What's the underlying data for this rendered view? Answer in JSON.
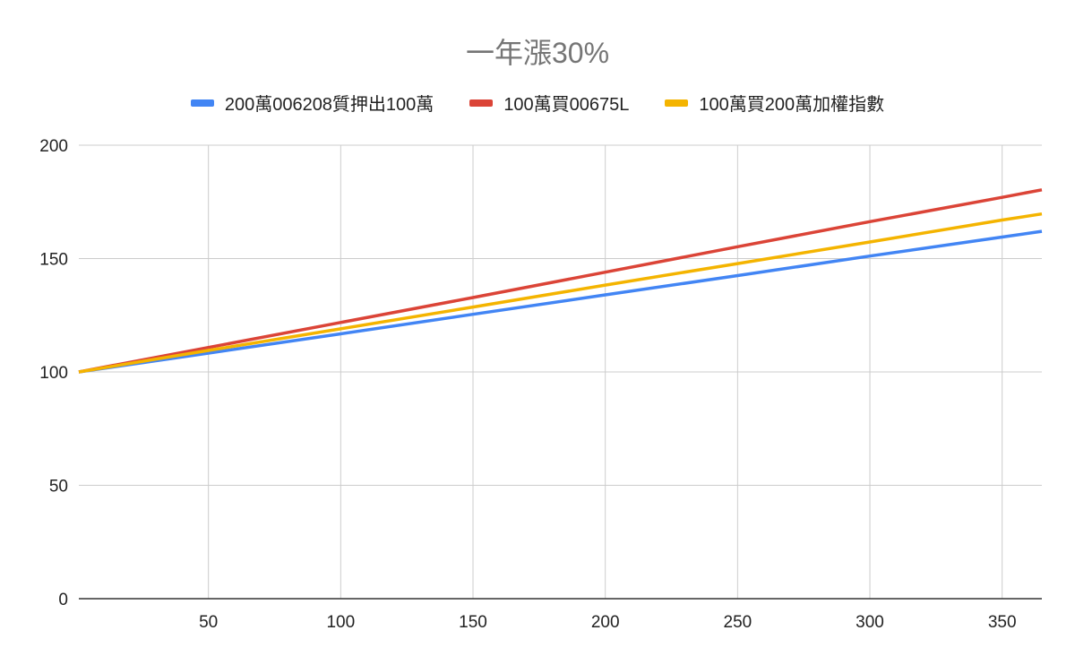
{
  "chart_data": {
    "type": "line",
    "title": "一年漲30%",
    "xlabel": "",
    "ylabel": "",
    "xlim": [
      0,
      365
    ],
    "ylim": [
      0,
      200
    ],
    "x_ticks": [
      50,
      100,
      150,
      200,
      250,
      300,
      350
    ],
    "y_ticks": [
      0,
      50,
      100,
      150,
      200
    ],
    "grid": true,
    "legend_position": "top",
    "x": [
      1,
      50,
      100,
      150,
      200,
      250,
      300,
      350,
      365
    ],
    "series": [
      {
        "name": "200萬006208質押出100萬",
        "color": "#4285f4",
        "values": [
          100,
          108.3,
          116.8,
          125.4,
          134,
          142.5,
          151.1,
          159.5,
          162
        ]
      },
      {
        "name": "100萬買00675L",
        "color": "#db4437",
        "values": [
          100,
          110.8,
          121.8,
          132.8,
          144,
          155.2,
          166.3,
          177,
          180.3
        ]
      },
      {
        "name": "100萬買200萬加權指數",
        "color": "#f4b400",
        "values": [
          100,
          109.5,
          119,
          128.6,
          138.3,
          147.8,
          157.3,
          167,
          169.7
        ]
      }
    ]
  }
}
